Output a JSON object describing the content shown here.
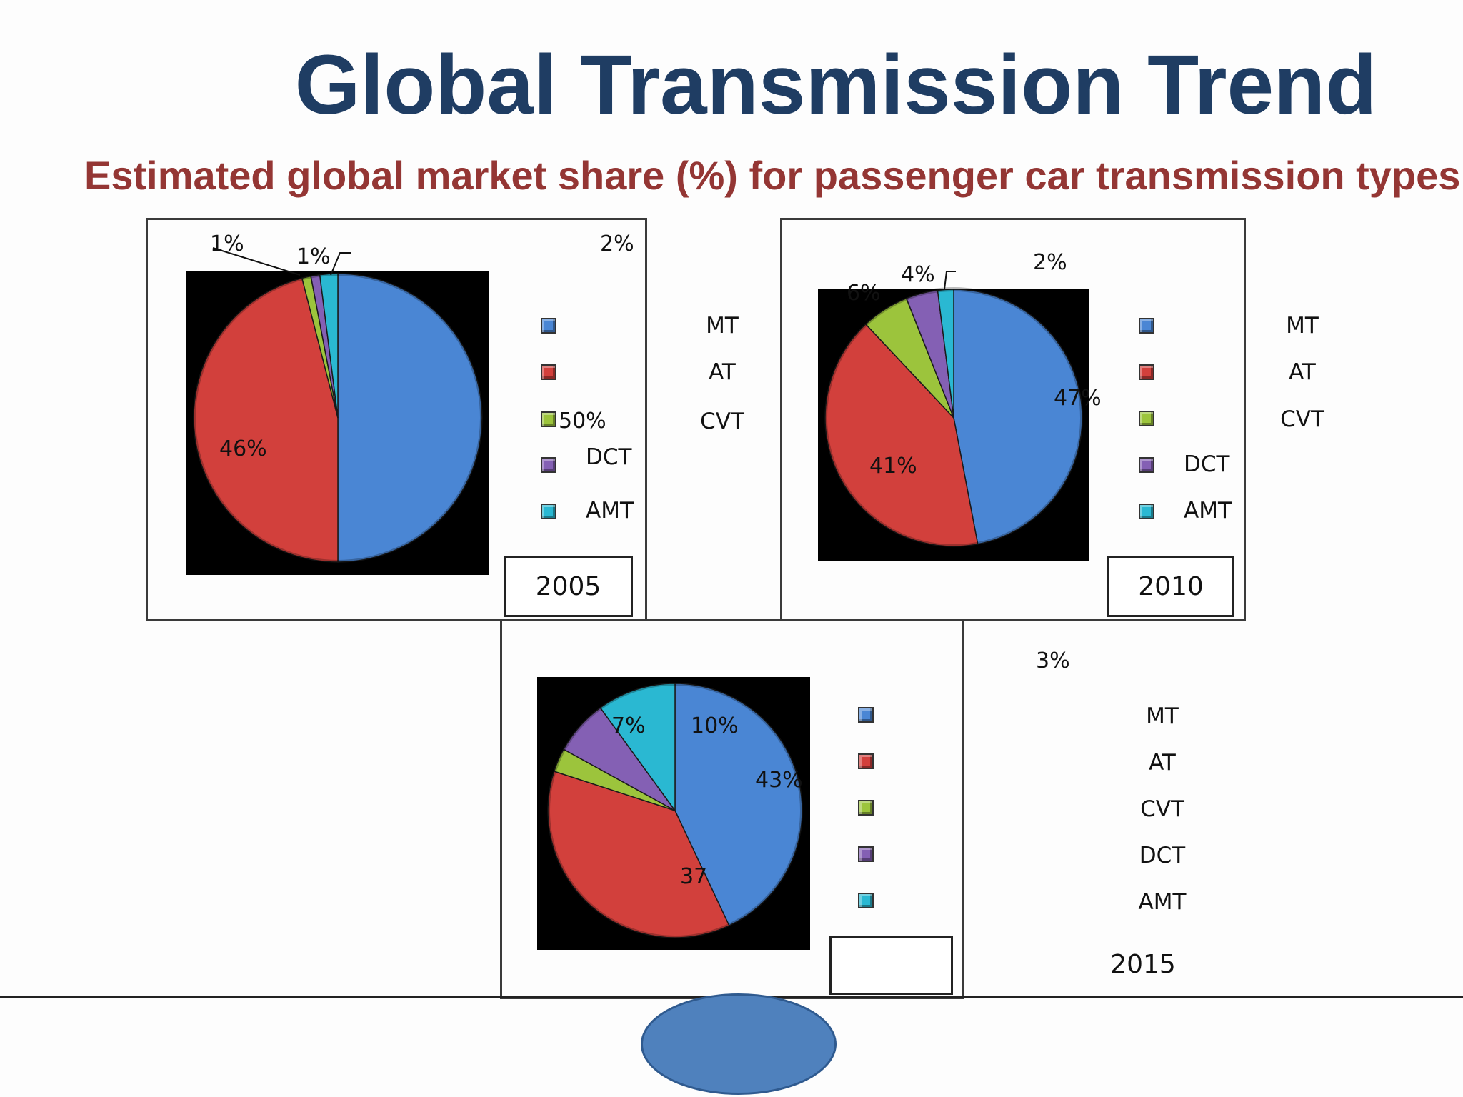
{
  "slide": {
    "title": "Global Transmission Trend",
    "subtitle": "Estimated global market share (%) for passenger car transmission types"
  },
  "colors": {
    "MT": "#4a86d4",
    "AT": "#d2403c",
    "CVT": "#9cc43c",
    "DCT": "#8460b4",
    "AMT": "#2ab8d2",
    "title": "#1f3d63",
    "subtitle": "#943634"
  },
  "chart_data": [
    {
      "type": "pie",
      "title": "2005",
      "categories": [
        "MT",
        "AT",
        "CVT",
        "DCT",
        "AMT"
      ],
      "values": [
        50,
        46,
        1,
        1,
        2
      ],
      "data_labels": [
        "50%",
        "46%",
        "1%",
        "1%",
        "2%"
      ],
      "legend": [
        "MT",
        "AT",
        "CVT",
        "DCT",
        "AMT"
      ]
    },
    {
      "type": "pie",
      "title": "2010",
      "categories": [
        "MT",
        "AT",
        "CVT",
        "DCT",
        "AMT"
      ],
      "values": [
        47,
        41,
        6,
        4,
        2
      ],
      "data_labels": [
        "47%",
        "41%",
        "6%",
        "4%",
        "2%"
      ],
      "legend": [
        "MT",
        "AT",
        "CVT",
        "DCT",
        "AMT"
      ]
    },
    {
      "type": "pie",
      "title": "2015",
      "categories": [
        "MT",
        "AT",
        "CVT",
        "DCT",
        "AMT"
      ],
      "values": [
        43,
        37,
        3,
        7,
        10
      ],
      "data_labels": [
        "43%",
        "37",
        "3%",
        "7%",
        "10%"
      ],
      "legend": [
        "MT",
        "AT",
        "CVT",
        "DCT",
        "AMT"
      ]
    }
  ]
}
